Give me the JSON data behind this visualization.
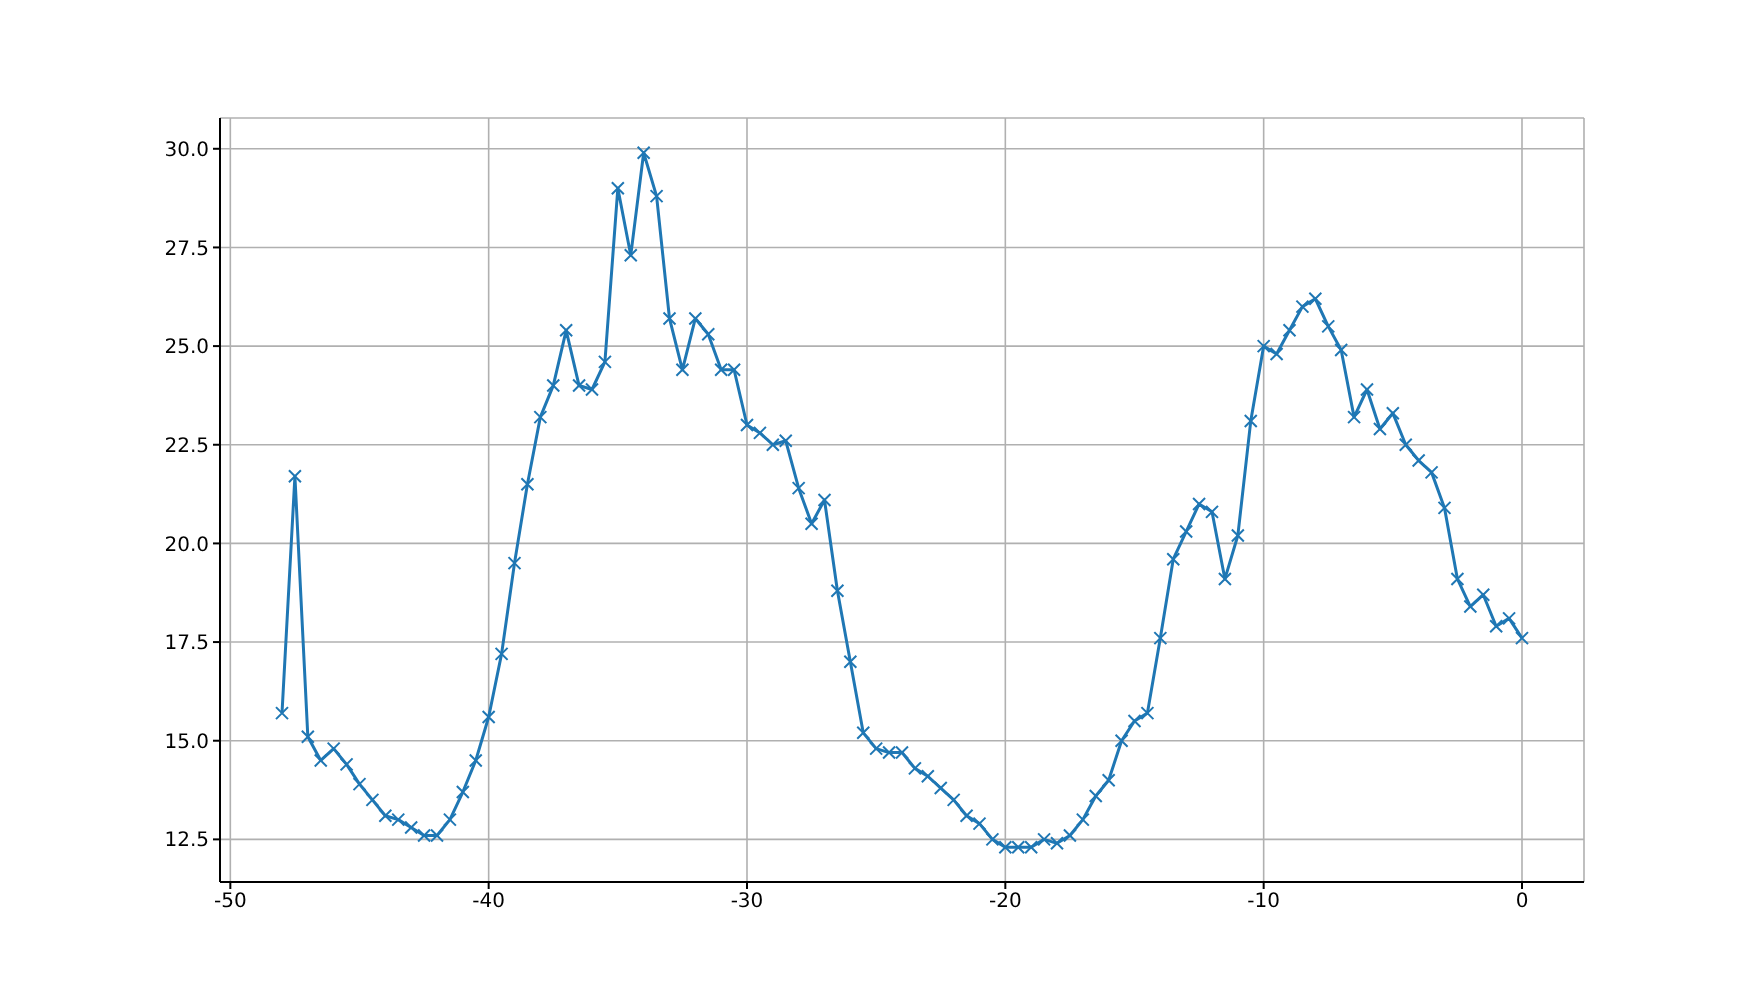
{
  "chart_data": {
    "type": "line",
    "x": [
      -48,
      -47.5,
      -47,
      -46.5,
      -46,
      -45.5,
      -45,
      -44.5,
      -44,
      -43.5,
      -43,
      -42.5,
      -42,
      -41.5,
      -41,
      -40.5,
      -40,
      -39.5,
      -39,
      -38.5,
      -38,
      -37.5,
      -37,
      -36.5,
      -36,
      -35.5,
      -35,
      -34.5,
      -34,
      -33.5,
      -33,
      -32.5,
      -32,
      -31.5,
      -31,
      -30.5,
      -30,
      -29.5,
      -29,
      -28.5,
      -28,
      -27.5,
      -27,
      -26.5,
      -26,
      -25.5,
      -25,
      -24.5,
      -24,
      -23.5,
      -23,
      -22.5,
      -22,
      -21.5,
      -21,
      -20.5,
      -20,
      -19.5,
      -19,
      -18.5,
      -18,
      -17.5,
      -17,
      -16.5,
      -16,
      -15.5,
      -15,
      -14.5,
      -14,
      -13.5,
      -13,
      -12.5,
      -12,
      -11.5,
      -11,
      -10.5,
      -10,
      -9.5,
      -9,
      -8.5,
      -8,
      -7.5,
      -7,
      -6.5,
      -6,
      -5.5,
      -5,
      -4.5,
      -4,
      -3.5,
      -3,
      -2.5,
      -2,
      -1.5,
      -1,
      -0.5,
      0
    ],
    "series": [
      {
        "color": "#1f77b4",
        "values": [
          15.7,
          21.7,
          15.1,
          14.5,
          14.8,
          14.4,
          13.9,
          13.5,
          13.1,
          13.0,
          12.8,
          12.6,
          12.6,
          13.0,
          13.7,
          14.5,
          15.6,
          17.2,
          19.5,
          21.5,
          23.2,
          24.0,
          25.4,
          24.0,
          23.9,
          24.6,
          29.0,
          27.3,
          29.9,
          28.8,
          25.7,
          24.4,
          25.7,
          25.3,
          24.4,
          24.4,
          23.0,
          22.8,
          22.5,
          22.6,
          21.4,
          20.5,
          21.1,
          18.8,
          17.0,
          15.2,
          14.8,
          14.7,
          14.7,
          14.3,
          14.1,
          13.8,
          13.5,
          13.1,
          12.9,
          12.5,
          12.3,
          12.3,
          12.3,
          12.5,
          12.4,
          12.6,
          13.0,
          13.6,
          14.0,
          15.0,
          15.5,
          15.7,
          17.6,
          19.6,
          20.3,
          21.0,
          20.8,
          19.1,
          20.2,
          23.1,
          25.0,
          24.8,
          25.4,
          26.0,
          26.2,
          25.5,
          24.9,
          23.2,
          23.9,
          22.9,
          23.3,
          22.5,
          22.1,
          21.8,
          20.9,
          19.1,
          18.4,
          18.7,
          17.9,
          18.1,
          17.6
        ]
      }
    ],
    "xlim": [
      -50.4,
      2.4
    ],
    "xticks": [
      -50,
      -40,
      -30,
      -20,
      -10,
      0
    ],
    "ylim": [
      11.42,
      30.78
    ],
    "yticks": [
      12.5,
      {
        "value": 15,
        "label": "15.0"
      },
      17.5,
      {
        "value": 20,
        "label": "20.0"
      },
      22.5,
      {
        "value": 25,
        "label": "25.0"
      },
      27.5,
      {
        "value": 30,
        "label": "30.0"
      }
    ],
    "grid": true,
    "marker": "cross",
    "line_style": "solid"
  }
}
